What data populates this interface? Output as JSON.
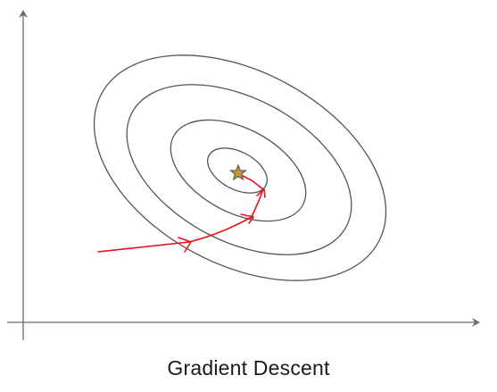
{
  "caption": "Gradient Descent",
  "colors": {
    "axis": "#6b6b6b",
    "contour": "#555555",
    "path": "#e8101a",
    "star_fill": "#c9962e",
    "star_stroke": "#555555",
    "background": "#ffffff"
  },
  "diagram": {
    "contour_count": 4,
    "path_step_count": 5,
    "target_marker": "star-icon"
  }
}
